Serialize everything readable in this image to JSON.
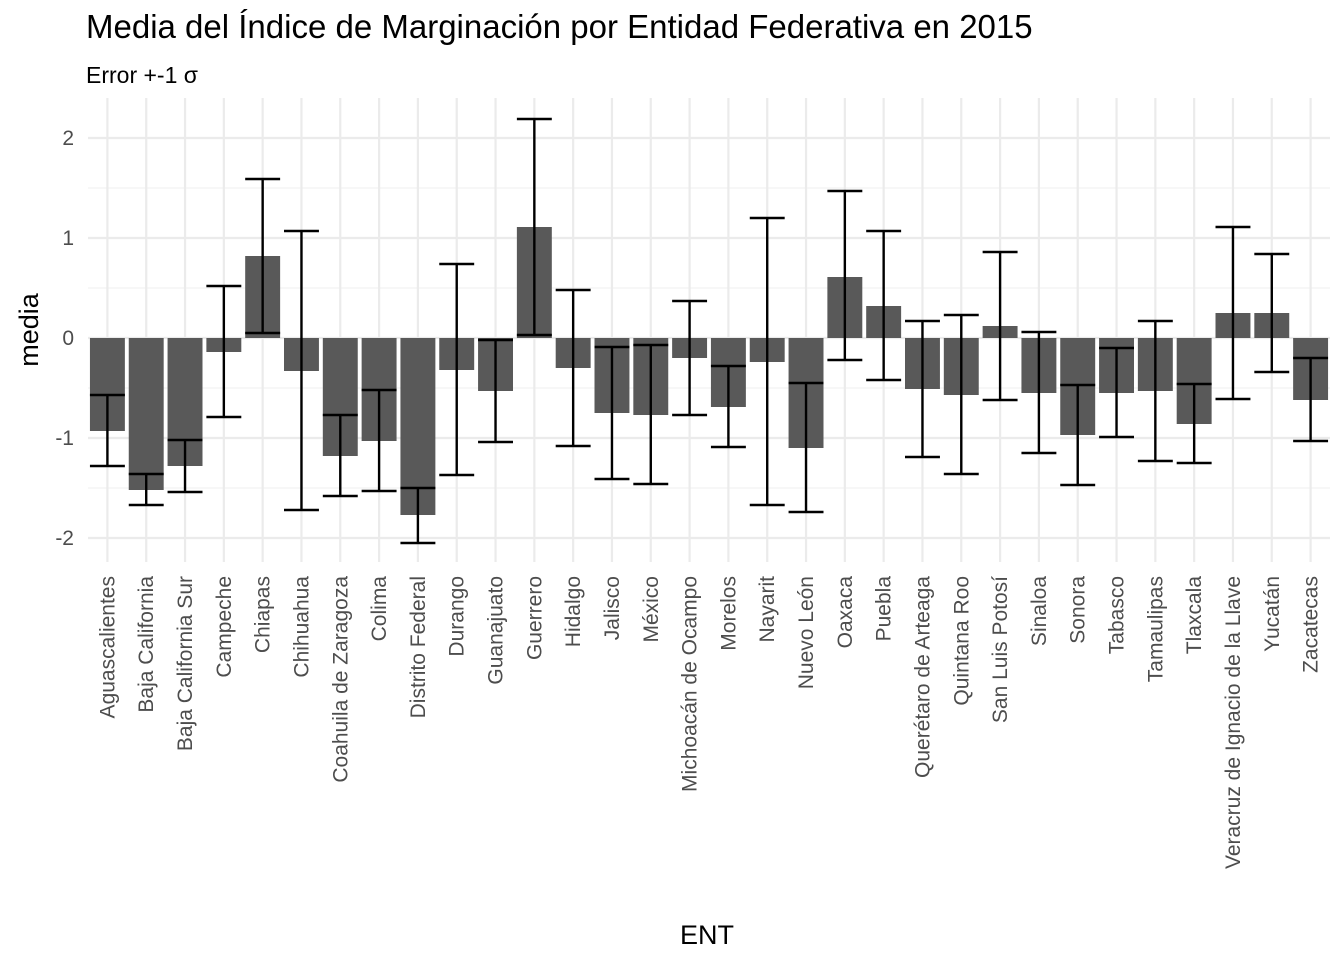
{
  "chart_data": {
    "type": "bar",
    "title": "Media del Índice de Marginación por Entidad Federativa en 2015",
    "subtitle": "Error +-1 σ",
    "xlabel": "ENT",
    "ylabel": "media",
    "ylim": [
      -2.25,
      2.4
    ],
    "yticks": [
      -2,
      -1,
      0,
      1,
      2
    ],
    "ytick_labels": [
      "-2",
      "-1",
      "0",
      "1",
      "2"
    ],
    "grid": true,
    "bar_color": "#595959",
    "errorbar_color": "#000000",
    "categories": [
      "Aguascalientes",
      "Baja California",
      "Baja California Sur",
      "Campeche",
      "Chiapas",
      "Chihuahua",
      "Coahuila de Zaragoza",
      "Colima",
      "Distrito Federal",
      "Durango",
      "Guanajuato",
      "Guerrero",
      "Hidalgo",
      "Jalisco",
      "México",
      "Michoacán de Ocampo",
      "Morelos",
      "Nayarit",
      "Nuevo León",
      "Oaxaca",
      "Puebla",
      "Querétaro de Arteaga",
      "Quintana Roo",
      "San Luis Potosí",
      "Sinaloa",
      "Sonora",
      "Tabasco",
      "Tamaulipas",
      "Tlaxcala",
      "Veracruz de Ignacio de la Llave",
      "Yucatán",
      "Zacatecas"
    ],
    "values": [
      -0.93,
      -1.52,
      -1.28,
      -0.14,
      0.82,
      -0.33,
      -1.18,
      -1.03,
      -1.77,
      -0.32,
      -0.53,
      1.11,
      -0.3,
      -0.75,
      -0.77,
      -0.2,
      -0.69,
      -0.24,
      -1.1,
      0.61,
      0.32,
      -0.51,
      -0.57,
      0.12,
      -0.55,
      -0.97,
      -0.55,
      -0.53,
      -0.86,
      0.25,
      0.25,
      -0.62
    ],
    "error_lower": [
      -1.28,
      -1.67,
      -1.54,
      -0.79,
      0.05,
      -1.72,
      -1.58,
      -1.53,
      -2.05,
      -1.37,
      -1.04,
      0.03,
      -1.08,
      -1.41,
      -1.46,
      -0.77,
      -1.09,
      -1.67,
      -1.74,
      -0.22,
      -0.42,
      -1.19,
      -1.36,
      -0.62,
      -1.15,
      -1.47,
      -0.99,
      -1.23,
      -1.25,
      -0.61,
      -0.34,
      -1.03
    ],
    "error_upper": [
      -0.57,
      -1.36,
      -1.02,
      0.52,
      1.59,
      1.07,
      -0.77,
      -0.52,
      -1.5,
      0.74,
      -0.02,
      2.19,
      0.48,
      -0.09,
      -0.07,
      0.37,
      -0.28,
      1.2,
      -0.45,
      1.47,
      1.07,
      0.17,
      0.23,
      0.86,
      0.06,
      -0.47,
      -0.1,
      0.17,
      -0.46,
      1.11,
      0.84,
      -0.2
    ]
  }
}
